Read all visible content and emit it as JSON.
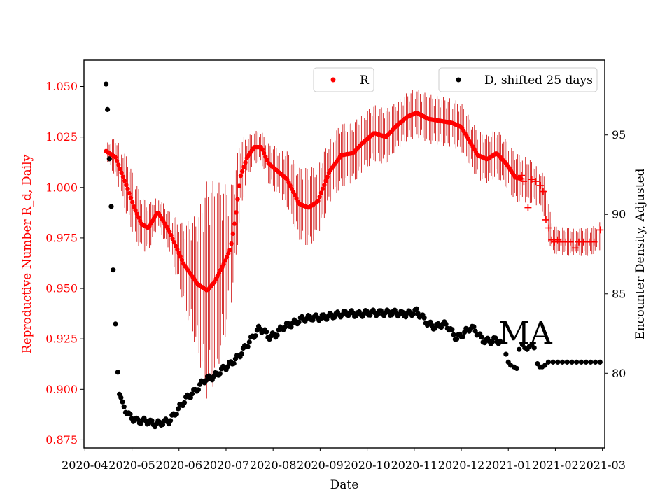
{
  "chart_data": {
    "type": "scatter",
    "annotation": "MA",
    "xlabel": "Date",
    "ylabel_left": "Reproductive Number R_d, Daily",
    "ylabel_right": "Encounter Density, Adjusted",
    "x_ticks": [
      "2020-04",
      "2020-05",
      "2020-06",
      "2020-07",
      "2020-08",
      "2020-09",
      "2020-10",
      "2020-11",
      "2020-12",
      "2021-01",
      "2021-02",
      "2021-03"
    ],
    "x_range_months": [
      -0.02,
      11.05
    ],
    "y_left_range": [
      0.871,
      1.063
    ],
    "y_left_ticks": [
      "0.875",
      "0.900",
      "0.925",
      "0.950",
      "0.975",
      "1.000",
      "1.025",
      "1.050"
    ],
    "y_right_range": [
      75.3,
      99.7
    ],
    "y_right_ticks": [
      "80",
      "85",
      "90",
      "95"
    ],
    "legend": {
      "r_label": "R",
      "d_label": "D, shifted 25 days"
    },
    "colors": {
      "r": "#ff0000",
      "err": "#cc0000",
      "d": "#000000"
    },
    "r_knots": [
      [
        0.45,
        1.018,
        0.004
      ],
      [
        0.65,
        1.015,
        0.01
      ],
      [
        0.9,
        1.0,
        0.015
      ],
      [
        1.05,
        0.99,
        0.015
      ],
      [
        1.2,
        0.982,
        0.014
      ],
      [
        1.35,
        0.98,
        0.012
      ],
      [
        1.55,
        0.988,
        0.008
      ],
      [
        1.8,
        0.978,
        0.01
      ],
      [
        2.1,
        0.962,
        0.02
      ],
      [
        2.4,
        0.952,
        0.035
      ],
      [
        2.6,
        0.949,
        0.055
      ],
      [
        2.75,
        0.953,
        0.05
      ],
      [
        2.95,
        0.962,
        0.04
      ],
      [
        3.1,
        0.97,
        0.03
      ],
      [
        3.2,
        0.985,
        0.025
      ],
      [
        3.3,
        1.005,
        0.02
      ],
      [
        3.45,
        1.015,
        0.01
      ],
      [
        3.6,
        1.02,
        0.008
      ],
      [
        3.75,
        1.02,
        0.008
      ],
      [
        3.9,
        1.012,
        0.01
      ],
      [
        4.1,
        1.008,
        0.012
      ],
      [
        4.3,
        1.004,
        0.014
      ],
      [
        4.55,
        0.992,
        0.018
      ],
      [
        4.75,
        0.99,
        0.02
      ],
      [
        4.95,
        0.993,
        0.018
      ],
      [
        5.2,
        1.008,
        0.016
      ],
      [
        5.45,
        1.016,
        0.016
      ],
      [
        5.7,
        1.017,
        0.015
      ],
      [
        5.9,
        1.022,
        0.015
      ],
      [
        6.15,
        1.027,
        0.014
      ],
      [
        6.4,
        1.025,
        0.014
      ],
      [
        6.6,
        1.03,
        0.012
      ],
      [
        6.85,
        1.035,
        0.012
      ],
      [
        7.05,
        1.037,
        0.012
      ],
      [
        7.3,
        1.034,
        0.012
      ],
      [
        7.55,
        1.033,
        0.012
      ],
      [
        7.8,
        1.032,
        0.012
      ],
      [
        8.0,
        1.03,
        0.012
      ],
      [
        8.15,
        1.024,
        0.012
      ],
      [
        8.35,
        1.016,
        0.012
      ],
      [
        8.55,
        1.014,
        0.012
      ],
      [
        8.75,
        1.017,
        0.012
      ],
      [
        8.95,
        1.012,
        0.012
      ],
      [
        9.15,
        1.005,
        0.012
      ],
      [
        9.35,
        1.004,
        0.012
      ],
      [
        9.55,
        1.002,
        0.01
      ],
      [
        9.75,
        0.997,
        0.01
      ],
      [
        9.85,
        0.983,
        0.01
      ],
      [
        9.95,
        0.974,
        0.007
      ],
      [
        10.3,
        0.973,
        0.007
      ],
      [
        10.75,
        0.973,
        0.007
      ],
      [
        10.95,
        0.976,
        0.007
      ]
    ],
    "r_plus_points": [
      [
        9.28,
        1.006
      ],
      [
        9.33,
        1.003
      ],
      [
        9.42,
        0.99
      ],
      [
        9.5,
        1.004
      ],
      [
        9.58,
        1.003
      ],
      [
        9.68,
        1.001
      ],
      [
        9.74,
        0.998
      ],
      [
        9.8,
        0.984
      ],
      [
        9.86,
        0.98
      ],
      [
        9.92,
        0.974
      ],
      [
        9.98,
        0.973
      ],
      [
        10.05,
        0.974
      ],
      [
        10.12,
        0.973
      ],
      [
        10.22,
        0.973
      ],
      [
        10.32,
        0.973
      ],
      [
        10.42,
        0.97
      ],
      [
        10.5,
        0.973
      ],
      [
        10.6,
        0.973
      ],
      [
        10.72,
        0.973
      ],
      [
        10.82,
        0.973
      ],
      [
        10.95,
        0.979
      ]
    ],
    "d_knots": [
      [
        0.45,
        98.2
      ],
      [
        0.48,
        96.6
      ],
      [
        0.52,
        93.5
      ],
      [
        0.56,
        90.5
      ],
      [
        0.6,
        86.5
      ],
      [
        0.65,
        83.1
      ],
      [
        0.72,
        79.0
      ],
      [
        0.8,
        78.0
      ],
      [
        0.95,
        77.3
      ],
      [
        1.1,
        77.0
      ],
      [
        1.3,
        77.0
      ],
      [
        1.5,
        76.8
      ],
      [
        1.65,
        76.9
      ],
      [
        1.8,
        77.0
      ],
      [
        1.95,
        77.6
      ],
      [
        2.15,
        78.4
      ],
      [
        2.35,
        78.9
      ],
      [
        2.55,
        79.6
      ],
      [
        2.75,
        79.8
      ],
      [
        2.95,
        80.3
      ],
      [
        3.1,
        80.6
      ],
      [
        3.25,
        81.0
      ],
      [
        3.4,
        81.6
      ],
      [
        3.55,
        82.2
      ],
      [
        3.7,
        82.8
      ],
      [
        3.8,
        82.7
      ],
      [
        3.9,
        82.3
      ],
      [
        4.05,
        82.4
      ],
      [
        4.2,
        82.9
      ],
      [
        4.4,
        83.1
      ],
      [
        4.6,
        83.4
      ],
      [
        4.8,
        83.5
      ],
      [
        5.0,
        83.5
      ],
      [
        5.2,
        83.6
      ],
      [
        5.4,
        83.7
      ],
      [
        5.6,
        83.8
      ],
      [
        5.8,
        83.7
      ],
      [
        6.0,
        83.8
      ],
      [
        6.2,
        83.8
      ],
      [
        6.4,
        83.8
      ],
      [
        6.6,
        83.8
      ],
      [
        6.8,
        83.7
      ],
      [
        6.95,
        83.8
      ],
      [
        7.05,
        83.9
      ],
      [
        7.15,
        83.6
      ],
      [
        7.3,
        83.1
      ],
      [
        7.45,
        82.9
      ],
      [
        7.6,
        83.1
      ],
      [
        7.7,
        83.0
      ],
      [
        7.8,
        82.6
      ],
      [
        7.9,
        82.2
      ],
      [
        8.05,
        82.5
      ],
      [
        8.2,
        82.9
      ],
      [
        8.3,
        82.7
      ],
      [
        8.45,
        82.1
      ],
      [
        8.6,
        82.0
      ],
      [
        8.7,
        82.1
      ],
      [
        8.85,
        82.0
      ]
    ],
    "d_points_extra": [
      [
        8.95,
        81.2
      ],
      [
        9.0,
        80.7
      ],
      [
        9.05,
        80.5
      ],
      [
        9.12,
        80.4
      ],
      [
        9.18,
        80.3
      ],
      [
        9.23,
        81.5
      ],
      [
        9.3,
        81.8
      ],
      [
        9.35,
        81.6
      ],
      [
        9.4,
        81.5
      ],
      [
        9.45,
        81.7
      ],
      [
        9.5,
        81.8
      ],
      [
        9.55,
        81.6
      ],
      [
        9.62,
        80.6
      ],
      [
        9.67,
        80.4
      ],
      [
        9.72,
        80.4
      ],
      [
        9.78,
        80.5
      ],
      [
        9.85,
        80.7
      ],
      [
        9.95,
        80.7
      ],
      [
        10.05,
        80.7
      ],
      [
        10.15,
        80.7
      ],
      [
        10.25,
        80.7
      ],
      [
        10.35,
        80.7
      ],
      [
        10.45,
        80.7
      ],
      [
        10.55,
        80.7
      ],
      [
        10.65,
        80.7
      ],
      [
        10.75,
        80.7
      ],
      [
        10.85,
        80.7
      ],
      [
        10.95,
        80.7
      ]
    ]
  }
}
